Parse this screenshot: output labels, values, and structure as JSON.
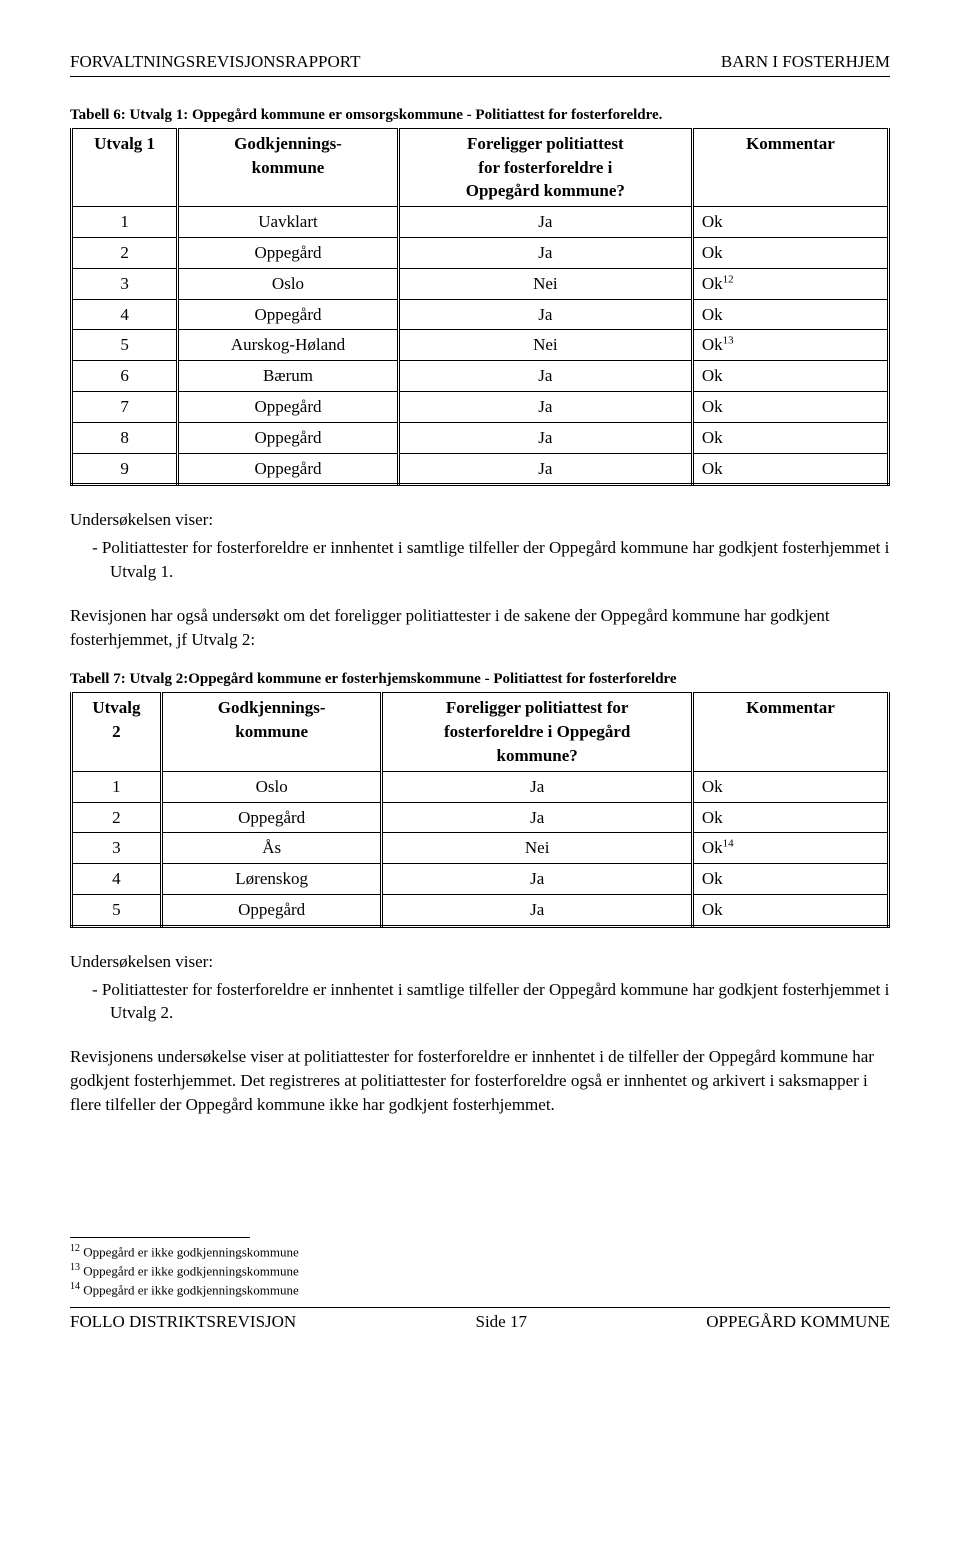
{
  "header": {
    "left": "FORVALTNINGSREVISJONSRAPPORT",
    "right": "BARN I FOSTERHJEM"
  },
  "table6": {
    "caption": "Tabell 6: Utvalg 1: Oppegård kommune er omsorgskommune - Politiattest for fosterforeldre.",
    "headers": {
      "c1": "Utvalg 1",
      "c2": "Godkjennings-\nkommune",
      "c3": "Foreligger politiattest\nfor fosterforeldre i\nOppegård kommune?",
      "c4": "Kommentar"
    },
    "rows": [
      {
        "n": "1",
        "kom": "Uavklart",
        "pol": "Ja",
        "kmt": "Ok",
        "sup": ""
      },
      {
        "n": "2",
        "kom": "Oppegård",
        "pol": "Ja",
        "kmt": "Ok",
        "sup": ""
      },
      {
        "n": "3",
        "kom": "Oslo",
        "pol": "Nei",
        "kmt": "Ok",
        "sup": "12"
      },
      {
        "n": "4",
        "kom": "Oppegård",
        "pol": "Ja",
        "kmt": "Ok",
        "sup": ""
      },
      {
        "n": "5",
        "kom": "Aurskog-Høland",
        "pol": "Nei",
        "kmt": "Ok",
        "sup": "13"
      },
      {
        "n": "6",
        "kom": "Bærum",
        "pol": "Ja",
        "kmt": "Ok",
        "sup": ""
      },
      {
        "n": "7",
        "kom": "Oppegård",
        "pol": "Ja",
        "kmt": "Ok",
        "sup": ""
      },
      {
        "n": "8",
        "kom": "Oppegård",
        "pol": "Ja",
        "kmt": "Ok",
        "sup": ""
      },
      {
        "n": "9",
        "kom": "Oppegård",
        "pol": "Ja",
        "kmt": "Ok",
        "sup": ""
      }
    ]
  },
  "intro1": "Undersøkelsen viser:",
  "bullet1": "Politiattester for fosterforeldre er innhentet i samtlige tilfeller der Oppegård kommune har godkjent fosterhjemmet i Utvalg 1.",
  "para1": "Revisjonen har også undersøkt om det foreligger politiattester i de sakene der Oppegård kommune har godkjent fosterhjemmet, jf Utvalg 2:",
  "table7": {
    "caption": "Tabell 7: Utvalg 2:Oppegård kommune er fosterhjemskommune - Politiattest for fosterforeldre",
    "headers": {
      "c1": "Utvalg\n2",
      "c2": "Godkjennings-\nkommune",
      "c3": "Foreligger politiattest for\nfosterforeldre i Oppegård\nkommune?",
      "c4": "Kommentar"
    },
    "rows": [
      {
        "n": "1",
        "kom": "Oslo",
        "pol": "Ja",
        "kmt": "Ok",
        "sup": ""
      },
      {
        "n": "2",
        "kom": "Oppegård",
        "pol": "Ja",
        "kmt": "Ok",
        "sup": ""
      },
      {
        "n": "3",
        "kom": "Ås",
        "pol": "Nei",
        "kmt": "Ok",
        "sup": "14"
      },
      {
        "n": "4",
        "kom": "Lørenskog",
        "pol": "Ja",
        "kmt": "Ok",
        "sup": ""
      },
      {
        "n": "5",
        "kom": "Oppegård",
        "pol": "Ja",
        "kmt": "Ok",
        "sup": ""
      }
    ]
  },
  "intro2": "Undersøkelsen viser:",
  "bullet2": "Politiattester for fosterforeldre er innhentet i samtlige tilfeller der Oppegård kommune har godkjent fosterhjemmet i Utvalg 2.",
  "para2": "Revisjonens undersøkelse viser at politiattester for fosterforeldre er innhentet i de tilfeller der Oppegård kommune har godkjent fosterhjemmet. Det registreres at politiattester for fosterforeldre også er innhentet og arkivert i saksmapper i flere tilfeller der Oppegård kommune ikke har godkjent fosterhjemmet.",
  "footnotes": [
    {
      "num": "12",
      "text": " Oppegård er ikke godkjenningskommune"
    },
    {
      "num": "13",
      "text": " Oppegård er ikke godkjenningskommune"
    },
    {
      "num": "14",
      "text": " Oppegård er ikke godkjenningskommune"
    }
  ],
  "footer": {
    "left": "FOLLO DISTRIKTSREVISJON",
    "center": "Side 17",
    "right": "OPPEGÅRD KOMMUNE"
  },
  "col_widths": {
    "t6": [
      "13%",
      "27%",
      "36%",
      "24%"
    ],
    "t7": [
      "11%",
      "27%",
      "38%",
      "24%"
    ]
  }
}
